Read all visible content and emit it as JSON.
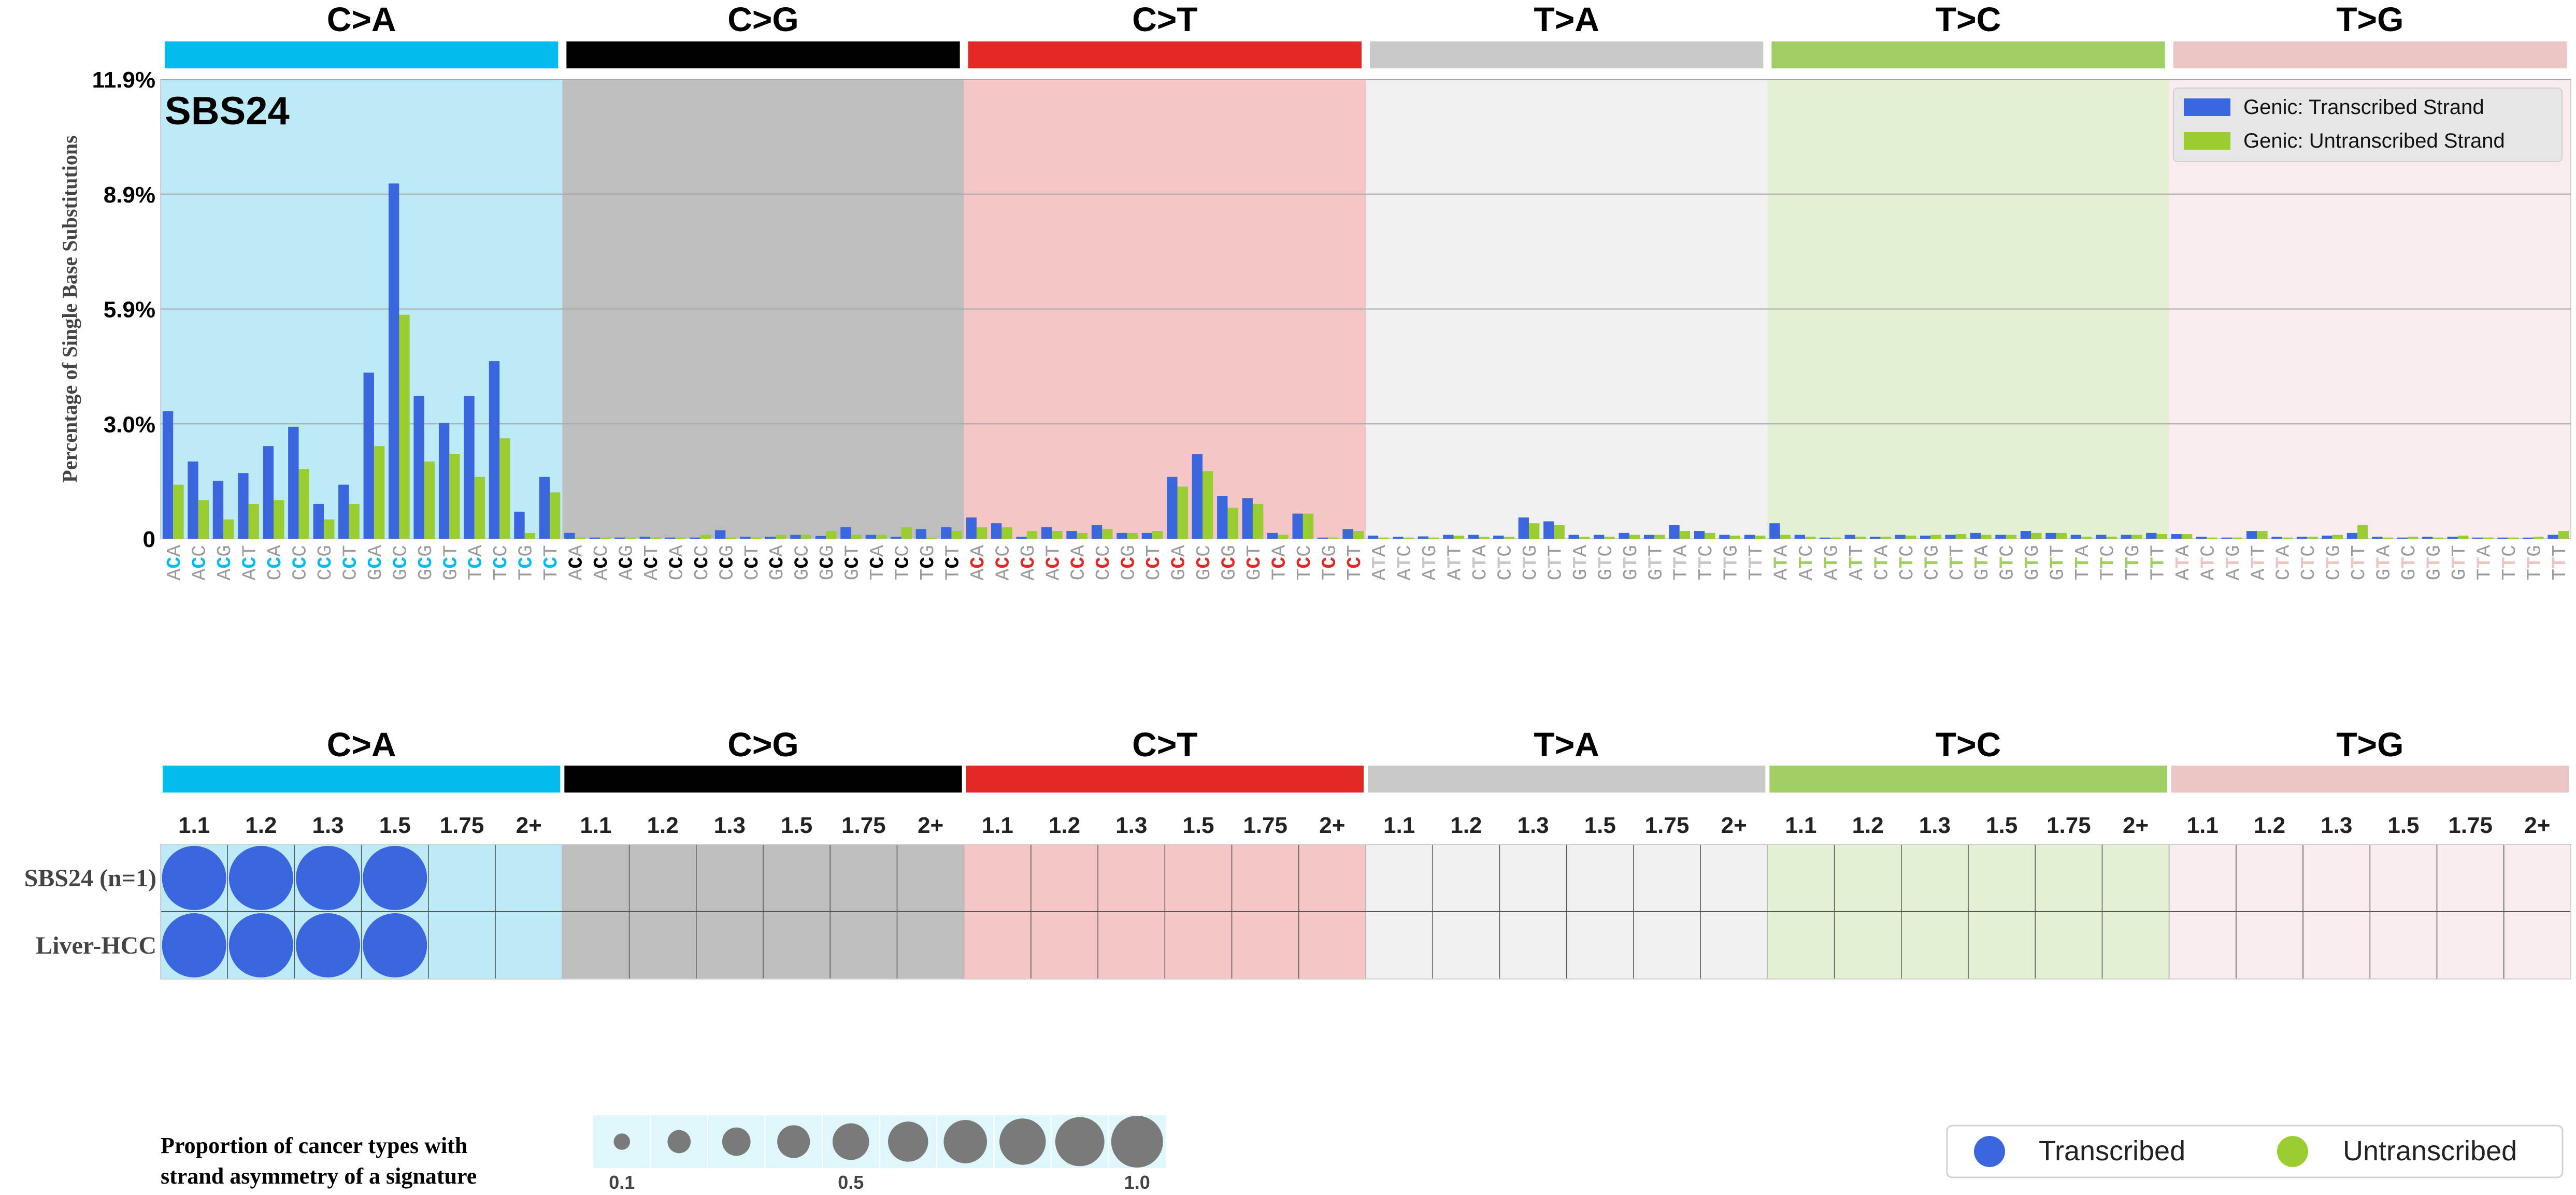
{
  "colors": {
    "C>A": "#03bcee",
    "C>G": "#010101",
    "C>T": "#e32926",
    "T>A": "#cac9c9",
    "T>C": "#a1ce63",
    "T>G": "#ebc6c4",
    "bg": {
      "C>A": "#bdeaf7",
      "C>G": "#bebebe",
      "C>T": "#f5c6c6",
      "T>A": "#f0f0f0",
      "T>C": "#e3f0d3",
      "T>G": "#f9ecec"
    },
    "transcribed": "#3b66dd",
    "untranscribed": "#9acd32",
    "bubble_transcribed": "#3b66dd",
    "legend_bubble": "#7a7a7a",
    "legend_bg": "#dff7fa",
    "context_gray": "#9a9a9a"
  },
  "chart_data": [
    {
      "type": "bar",
      "title": "SBS24",
      "ylabel": "Percentage of Single Base Substitutions",
      "y_ticks": [
        "0",
        "3.0%",
        "5.9%",
        "8.9%",
        "11.9%"
      ],
      "ylim": [
        0,
        11.9
      ],
      "grid": true,
      "legend_position": "top-right",
      "mutation_types": [
        "C>A",
        "C>G",
        "C>T",
        "T>A",
        "T>C",
        "T>G"
      ],
      "categories": [
        "ACA",
        "ACC",
        "ACG",
        "ACT",
        "CCA",
        "CCC",
        "CCG",
        "CCT",
        "GCA",
        "GCC",
        "GCG",
        "GCT",
        "TCA",
        "TCC",
        "TCG",
        "TCT",
        "ACA",
        "ACC",
        "ACG",
        "ACT",
        "CCA",
        "CCC",
        "CCG",
        "CCT",
        "GCA",
        "GCC",
        "GCG",
        "GCT",
        "TCA",
        "TCC",
        "TCG",
        "TCT",
        "ACA",
        "ACC",
        "ACG",
        "ACT",
        "CCA",
        "CCC",
        "CCG",
        "CCT",
        "GCA",
        "GCC",
        "GCG",
        "GCT",
        "TCA",
        "TCC",
        "TCG",
        "TCT",
        "ATA",
        "ATC",
        "ATG",
        "ATT",
        "CTA",
        "CTC",
        "CTG",
        "CTT",
        "GTA",
        "GTC",
        "GTG",
        "GTT",
        "TTA",
        "TTC",
        "TTG",
        "TTT",
        "ATA",
        "ATC",
        "ATG",
        "ATT",
        "CTA",
        "CTC",
        "CTG",
        "CTT",
        "GTA",
        "GTC",
        "GTG",
        "GTT",
        "TTA",
        "TTC",
        "TTG",
        "TTT",
        "ATA",
        "ATC",
        "ATG",
        "ATT",
        "CTA",
        "CTC",
        "CTG",
        "CTT",
        "GTA",
        "GTC",
        "GTG",
        "GTT",
        "TTA",
        "TTC",
        "TTG",
        "TTT"
      ],
      "series": [
        {
          "name": "Genic: Transcribed Strand",
          "values": [
            3.3,
            2.0,
            1.5,
            1.7,
            2.4,
            2.9,
            0.9,
            1.4,
            4.3,
            9.2,
            3.7,
            3.0,
            3.7,
            4.6,
            0.7,
            1.6,
            0.15,
            0.03,
            0.03,
            0.05,
            0.03,
            0.03,
            0.22,
            0.05,
            0.05,
            0.1,
            0.07,
            0.3,
            0.1,
            0.05,
            0.25,
            0.3,
            0.55,
            0.4,
            0.05,
            0.3,
            0.2,
            0.35,
            0.15,
            0.15,
            1.6,
            2.2,
            1.1,
            1.05,
            0.15,
            0.65,
            0.03,
            0.25,
            0.08,
            0.05,
            0.06,
            0.1,
            0.1,
            0.08,
            0.55,
            0.45,
            0.1,
            0.1,
            0.15,
            0.1,
            0.35,
            0.2,
            0.1,
            0.1,
            0.4,
            0.1,
            0.03,
            0.1,
            0.05,
            0.1,
            0.08,
            0.1,
            0.15,
            0.1,
            0.2,
            0.15,
            0.1,
            0.1,
            0.1,
            0.15,
            0.12,
            0.05,
            0.03,
            0.2,
            0.05,
            0.05,
            0.08,
            0.15,
            0.05,
            0.03,
            0.05,
            0.05,
            0.03,
            0.03,
            0.03,
            0.1
          ]
        },
        {
          "name": "Genic: Untranscribed Strand",
          "values": [
            1.4,
            1.0,
            0.5,
            0.9,
            1.0,
            1.8,
            0.5,
            0.9,
            2.4,
            5.8,
            2.0,
            2.2,
            1.6,
            2.6,
            0.15,
            1.2,
            0.03,
            0.03,
            0.03,
            0.03,
            0.03,
            0.1,
            0.03,
            0.03,
            0.1,
            0.1,
            0.2,
            0.1,
            0.1,
            0.3,
            0.03,
            0.2,
            0.3,
            0.3,
            0.2,
            0.2,
            0.15,
            0.25,
            0.15,
            0.2,
            1.35,
            1.75,
            0.8,
            0.9,
            0.1,
            0.65,
            0.03,
            0.2,
            0.03,
            0.03,
            0.03,
            0.08,
            0.05,
            0.05,
            0.4,
            0.35,
            0.05,
            0.05,
            0.1,
            0.1,
            0.2,
            0.15,
            0.08,
            0.08,
            0.1,
            0.05,
            0.03,
            0.05,
            0.05,
            0.08,
            0.1,
            0.12,
            0.1,
            0.1,
            0.15,
            0.15,
            0.05,
            0.05,
            0.1,
            0.12,
            0.12,
            0.03,
            0.03,
            0.2,
            0.03,
            0.05,
            0.1,
            0.35,
            0.03,
            0.05,
            0.03,
            0.08,
            0.03,
            0.03,
            0.05,
            0.2
          ]
        }
      ]
    },
    {
      "type": "heatmap",
      "mutation_types": [
        "C>A",
        "C>G",
        "C>T",
        "T>A",
        "T>C",
        "T>G"
      ],
      "columns": [
        "1.1",
        "1.2",
        "1.3",
        "1.5",
        "1.75",
        "2+"
      ],
      "rows": [
        "SBS24 (n=1)",
        "Liver-HCC"
      ],
      "bubbles": [
        {
          "row": 0,
          "type": "C>A",
          "column": "1.1",
          "strand": "Transcribed",
          "proportion": 1.0
        },
        {
          "row": 0,
          "type": "C>A",
          "column": "1.2",
          "strand": "Transcribed",
          "proportion": 1.0
        },
        {
          "row": 0,
          "type": "C>A",
          "column": "1.3",
          "strand": "Transcribed",
          "proportion": 1.0
        },
        {
          "row": 0,
          "type": "C>A",
          "column": "1.5",
          "strand": "Transcribed",
          "proportion": 1.0
        },
        {
          "row": 1,
          "type": "C>A",
          "column": "1.1",
          "strand": "Transcribed",
          "proportion": 1.0
        },
        {
          "row": 1,
          "type": "C>A",
          "column": "1.2",
          "strand": "Transcribed",
          "proportion": 1.0
        },
        {
          "row": 1,
          "type": "C>A",
          "column": "1.3",
          "strand": "Transcribed",
          "proportion": 1.0
        },
        {
          "row": 1,
          "type": "C>A",
          "column": "1.5",
          "strand": "Transcribed",
          "proportion": 1.0
        }
      ]
    }
  ],
  "size_legend": {
    "title_line1": "Proportion of cancer types with",
    "title_line2": "strand asymmetry of a signature",
    "sizes": [
      0.1,
      0.2,
      0.3,
      0.4,
      0.5,
      0.6,
      0.7,
      0.8,
      0.9,
      1.0
    ],
    "tick_labels": [
      "0.1",
      "0.5",
      "1.0"
    ]
  },
  "strand_legend": {
    "transcribed": "Transcribed",
    "untranscribed": "Untranscribed"
  }
}
